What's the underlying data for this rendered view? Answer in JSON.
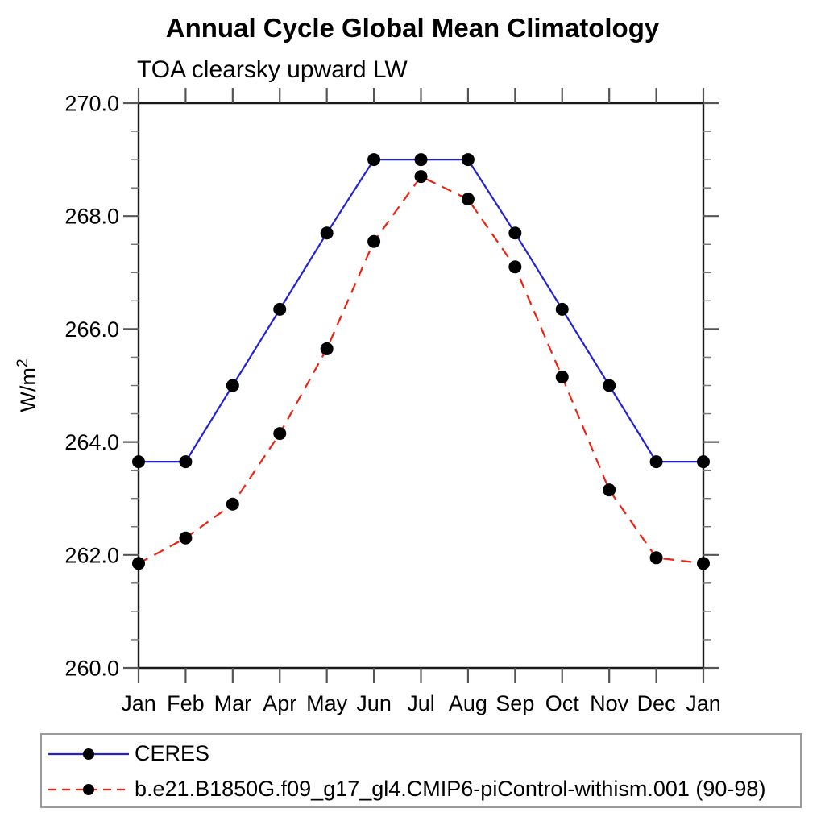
{
  "header": {
    "title": "Annual Cycle Global Mean Climatology",
    "subtitle": "TOA clearsky upward LW"
  },
  "axes": {
    "ylabel_base": "W/m",
    "ylabel_sup": "2",
    "y_major_labels": [
      "260.0",
      "262.0",
      "264.0",
      "266.0",
      "268.0",
      "270.0"
    ],
    "y_major_values": [
      260,
      262,
      264,
      266,
      268,
      270
    ],
    "x_labels": [
      "Jan",
      "Feb",
      "Mar",
      "Apr",
      "May",
      "Jun",
      "Jul",
      "Aug",
      "Sep",
      "Oct",
      "Nov",
      "Dec",
      "Jan"
    ]
  },
  "chart_data": {
    "type": "line",
    "title": "Annual Cycle Global Mean Climatology",
    "subtitle": "TOA clearsky upward LW",
    "ylabel": "W/m2",
    "xlabel": "",
    "ylim": [
      260.0,
      270.0
    ],
    "y_major_step": 2.0,
    "y_minor_step": 0.5,
    "grid": false,
    "legend_position": "bottom-left-box",
    "categories": [
      "Jan",
      "Feb",
      "Mar",
      "Apr",
      "May",
      "Jun",
      "Jul",
      "Aug",
      "Sep",
      "Oct",
      "Nov",
      "Dec",
      "Jan"
    ],
    "series": [
      {
        "name": "CERES",
        "color": "#2323d3",
        "line_style": "solid",
        "marker": "filled-circle",
        "marker_color": "#000000",
        "values": [
          263.65,
          263.65,
          265.0,
          266.35,
          267.7,
          269.0,
          269.0,
          269.0,
          267.7,
          266.35,
          265.0,
          263.65,
          263.65
        ]
      },
      {
        "name": "b.e21.B1850G.f09_g17_gl4.CMIP6-piControl-withism.001 (90-98)",
        "color": "#ee2211",
        "line_style": "dashed",
        "marker": "filled-circle",
        "marker_color": "#000000",
        "values": [
          261.85,
          262.3,
          262.9,
          264.15,
          265.65,
          267.55,
          268.7,
          268.3,
          267.1,
          265.15,
          263.15,
          261.95,
          261.85
        ]
      }
    ]
  },
  "colors": {
    "frame": "#1a1a1a",
    "tick_major": "#555555",
    "tick_minor": "#777777",
    "legend_border": "#9a9a9a",
    "text": "#000000"
  }
}
